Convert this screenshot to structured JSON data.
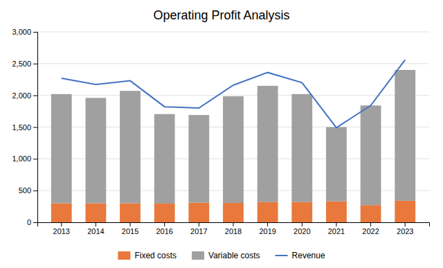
{
  "chart_data": {
    "type": "bar",
    "stacked": true,
    "title": "Operating Profit Analysis",
    "categories": [
      "2013",
      "2014",
      "2015",
      "2016",
      "2017",
      "2018",
      "2019",
      "2020",
      "2021",
      "2022",
      "2023"
    ],
    "series": [
      {
        "name": "Fixed costs",
        "color": "#E8783C",
        "values": [
          300,
          300,
          300,
          295,
          310,
          305,
          320,
          320,
          330,
          270,
          340
        ]
      },
      {
        "name": "Variable costs",
        "color": "#A0A0A0",
        "values": [
          1720,
          1660,
          1770,
          1410,
          1380,
          1680,
          1830,
          1700,
          1170,
          1570,
          2060
        ]
      },
      {
        "name": "Revenue",
        "type": "line",
        "color": "#4472C4",
        "values": [
          2270,
          2170,
          2230,
          1820,
          1800,
          2160,
          2360,
          2200,
          1490,
          1840,
          2560
        ]
      }
    ],
    "ylim": [
      0,
      3000
    ],
    "yticks": [
      0,
      500,
      {
        "value": 1000,
        "label": "1,000"
      },
      {
        "value": 1500,
        "label": "1,500"
      },
      {
        "value": 2000,
        "label": "2,000"
      },
      {
        "value": 2500,
        "label": "2,500"
      },
      {
        "value": 3000,
        "label": "3,000"
      }
    ],
    "grid": true,
    "legend": "bottom"
  }
}
